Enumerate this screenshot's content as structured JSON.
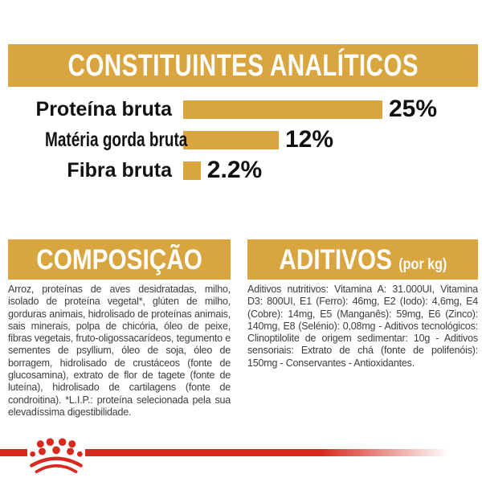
{
  "colors": {
    "gold": "#D9A53F",
    "red": "#D7291D",
    "label_ink": "#111111",
    "body_ink": "#3C3C3B"
  },
  "title_banner": {
    "text": "CONSTITUINTES ANALÍTICOS"
  },
  "chart_data": {
    "type": "bar",
    "orientation": "horizontal",
    "title": "CONSTITUINTES ANALÍTICOS",
    "categories": [
      "Proteína bruta",
      "Matéria gorda bruta",
      "Fibra bruta"
    ],
    "values": [
      25,
      12,
      2.2
    ],
    "value_labels": [
      "25%",
      "12%",
      "2.2%"
    ],
    "unit": "%",
    "xlim": [
      0,
      25
    ],
    "bar_color": "#D9A53F",
    "grid": false,
    "legend": false
  },
  "composition": {
    "header": "COMPOSIÇÃO",
    "body": "Arroz, proteínas de aves desidratadas, milho, isolado de proteína vegetal*, glúten de milho, gorduras animais, hidrolisado de proteínas animais, sais minerais, polpa de chicória, óleo de peixe, fibras vegetais, fruto-oligossacarídeos, tegumento e sementes de psyllium, óleo de soja, óleo de borragem, hidrolisado de crustáceos (fonte de glucosamina), extrato de flor de tagete (fonte de luteína), hidrolisado de cartilagens (fonte de condroitina). *L.I.P.: proteína selecionada pela sua elevadíssima digestibilidade."
  },
  "additives": {
    "header": "ADITIVOS",
    "header_suffix": "(por kg)",
    "body": "Aditivos nutritivos: Vitamina A: 31.000UI, Vitamina D3: 800UI, E1 (Ferro): 46mg, E2 (Iodo): 4,6mg, E4 (Cobre): 14mg, E5 (Manganês): 59mg, E6 (Zinco): 140mg, E8 (Selénio): 0,08mg - Aditivos tecnológicos: Clinoptilolite de origem sedimentar: 10g - Aditivos sensoriais: Extrato de chá (fonte de polifenóis): 150mg - Conservantes - Antioxidantes."
  },
  "footer": {
    "logo_icon": "royal-canin-crown"
  }
}
